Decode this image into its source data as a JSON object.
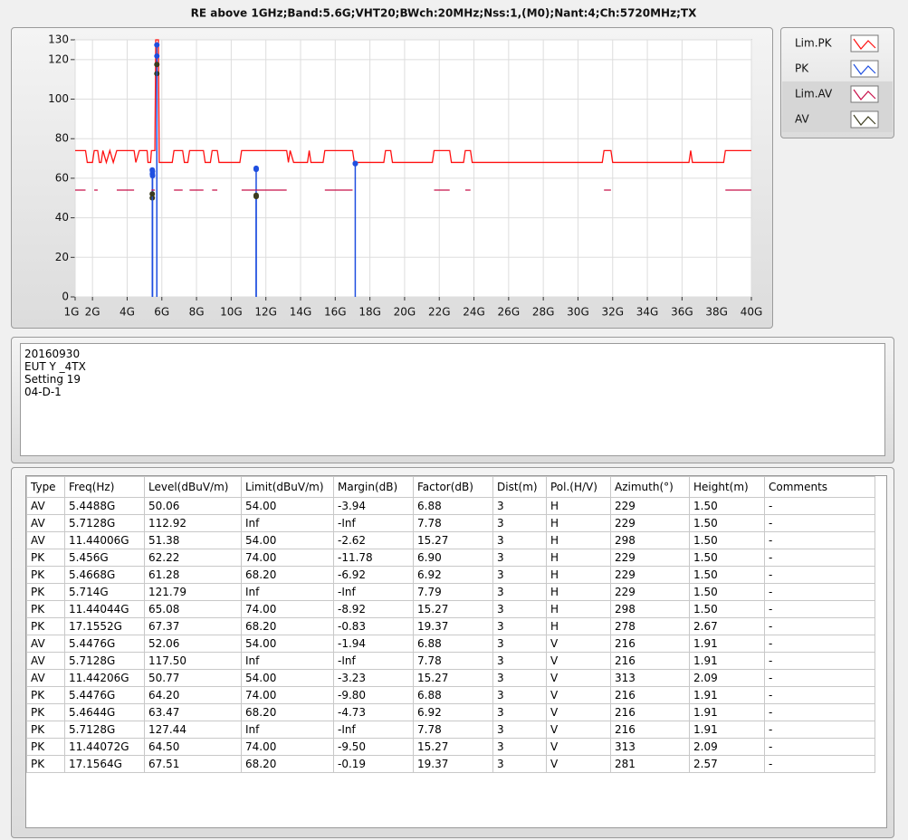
{
  "chart_data": {
    "type": "line",
    "title": "RE above 1GHz;Band:5.6G;VHT20;BWch:20MHz;Nss:1,(M0);Nant:4;Ch:5720MHz;TX",
    "xlim": [
      1,
      40
    ],
    "xticks": [
      {
        "value": 1,
        "label": "1G"
      },
      {
        "value": 2,
        "label": "2G"
      },
      {
        "value": 4,
        "label": "4G"
      },
      {
        "value": 6,
        "label": "6G"
      },
      {
        "value": 8,
        "label": "8G"
      },
      {
        "value": 10,
        "label": "10G"
      },
      {
        "value": 12,
        "label": "12G"
      },
      {
        "value": 14,
        "label": "14G"
      },
      {
        "value": 16,
        "label": "16G"
      },
      {
        "value": 18,
        "label": "18G"
      },
      {
        "value": 20,
        "label": "20G"
      },
      {
        "value": 22,
        "label": "22G"
      },
      {
        "value": 24,
        "label": "24G"
      },
      {
        "value": 26,
        "label": "26G"
      },
      {
        "value": 28,
        "label": "28G"
      },
      {
        "value": 30,
        "label": "30G"
      },
      {
        "value": 32,
        "label": "32G"
      },
      {
        "value": 34,
        "label": "34G"
      },
      {
        "value": 36,
        "label": "36G"
      },
      {
        "value": 38,
        "label": "38G"
      },
      {
        "value": 40,
        "label": "40G"
      }
    ],
    "ylim": [
      0,
      130
    ],
    "yticks": [
      0,
      20,
      40,
      60,
      80,
      100,
      120,
      130
    ],
    "grid": true,
    "legend": "right",
    "series": [
      {
        "name": "Lim.PK",
        "color": "#ff1010",
        "type": "line",
        "x": [
          1,
          1.6,
          1.7,
          2.0,
          2.1,
          2.3,
          2.4,
          2.5,
          2.6,
          2.8,
          3.0,
          3.2,
          3.4,
          4.4,
          4.5,
          4.7,
          5.15,
          5.2,
          5.35,
          5.4,
          5.6,
          5.65,
          5.8,
          5.85,
          6.6,
          6.7,
          7.2,
          7.3,
          7.5,
          7.6,
          8.4,
          8.5,
          8.8,
          8.9,
          9.2,
          9.3,
          10.5,
          10.6,
          13.2,
          13.3,
          13.4,
          13.6,
          14.4,
          14.5,
          14.6,
          15.3,
          15.4,
          17.0,
          17.1,
          18.8,
          18.9,
          19.2,
          19.3,
          21.6,
          21.7,
          22.6,
          22.7,
          23.4,
          23.5,
          23.8,
          23.9,
          31.4,
          31.5,
          31.9,
          32.0,
          36.4,
          36.5,
          36.6,
          38.4,
          38.5,
          40
        ],
        "values": [
          74,
          74,
          68,
          68,
          74,
          74,
          68,
          68,
          74,
          68,
          74,
          68,
          74,
          74,
          68,
          74,
          74,
          68,
          68,
          74,
          74,
          130,
          130,
          68,
          68,
          74,
          74,
          68,
          68,
          74,
          74,
          68,
          68,
          74,
          74,
          68,
          68,
          74,
          74,
          68,
          74,
          68,
          68,
          74,
          68,
          68,
          74,
          74,
          68,
          68,
          74,
          74,
          68,
          68,
          74,
          74,
          68,
          68,
          74,
          74,
          68,
          68,
          74,
          74,
          68,
          68,
          74,
          68,
          68,
          74,
          74
        ]
      },
      {
        "name": "PK",
        "color": "#1f4fe0",
        "type": "stem",
        "x": [
          5.456,
          5.4668,
          5.714,
          11.44044,
          17.1552,
          5.4476,
          5.4644,
          5.7128,
          11.44072,
          17.1564
        ],
        "values": [
          62.22,
          61.28,
          121.79,
          65.08,
          67.37,
          64.2,
          63.47,
          127.44,
          64.5,
          67.51
        ]
      },
      {
        "name": "Lim.AV",
        "color": "#c8104a",
        "type": "line",
        "x": [
          1,
          1.6,
          1.65,
          2.1,
          2.3,
          2.35,
          3.4,
          4.4,
          4.45,
          5.4,
          5.6,
          5.65,
          6.7,
          7.2,
          7.25,
          7.6,
          8.4,
          8.45,
          8.9,
          9.2,
          9.25,
          10.6,
          13.2,
          13.25,
          15.4,
          17.0,
          17.05,
          21.7,
          22.6,
          22.65,
          23.5,
          23.8,
          23.85,
          31.5,
          31.9,
          31.95,
          38.5,
          40
        ],
        "values": [
          54,
          54,
          null,
          54,
          54,
          null,
          54,
          54,
          null,
          54,
          54,
          null,
          54,
          54,
          null,
          54,
          54,
          null,
          54,
          54,
          null,
          54,
          54,
          null,
          54,
          54,
          null,
          54,
          54,
          null,
          54,
          54,
          null,
          54,
          54,
          null,
          54,
          54
        ]
      },
      {
        "name": "AV",
        "color": "#3c3c1e",
        "type": "stem",
        "x": [
          5.4488,
          5.7128,
          11.44006,
          5.4476,
          5.7128,
          11.44206
        ],
        "values": [
          50.06,
          112.92,
          51.38,
          52.06,
          117.5,
          50.77
        ]
      }
    ]
  },
  "notes": [
    "20160930",
    "EUT Y _4TX",
    "Setting 19",
    "04-D-1"
  ],
  "table": {
    "headers": [
      "Type",
      "Freq(Hz)",
      "Level(dBuV/m)",
      "Limit(dBuV/m)",
      "Margin(dB)",
      "Factor(dB)",
      "Dist(m)",
      "Pol.(H/V)",
      "Azimuth(°)",
      "Height(m)",
      "Comments"
    ],
    "rows": [
      [
        "AV",
        "5.4488G",
        "50.06",
        "54.00",
        "-3.94",
        "6.88",
        "3",
        "H",
        "229",
        "1.50",
        "-"
      ],
      [
        "AV",
        "5.7128G",
        "112.92",
        "Inf",
        "-Inf",
        "7.78",
        "3",
        "H",
        "229",
        "1.50",
        "-"
      ],
      [
        "AV",
        "11.44006G",
        "51.38",
        "54.00",
        "-2.62",
        "15.27",
        "3",
        "H",
        "298",
        "1.50",
        "-"
      ],
      [
        "PK",
        "5.456G",
        "62.22",
        "74.00",
        "-11.78",
        "6.90",
        "3",
        "H",
        "229",
        "1.50",
        "-"
      ],
      [
        "PK",
        "5.4668G",
        "61.28",
        "68.20",
        "-6.92",
        "6.92",
        "3",
        "H",
        "229",
        "1.50",
        "-"
      ],
      [
        "PK",
        "5.714G",
        "121.79",
        "Inf",
        "-Inf",
        "7.79",
        "3",
        "H",
        "229",
        "1.50",
        "-"
      ],
      [
        "PK",
        "11.44044G",
        "65.08",
        "74.00",
        "-8.92",
        "15.27",
        "3",
        "H",
        "298",
        "1.50",
        "-"
      ],
      [
        "PK",
        "17.1552G",
        "67.37",
        "68.20",
        "-0.83",
        "19.37",
        "3",
        "H",
        "278",
        "2.67",
        "-"
      ],
      [
        "AV",
        "5.4476G",
        "52.06",
        "54.00",
        "-1.94",
        "6.88",
        "3",
        "V",
        "216",
        "1.91",
        "-"
      ],
      [
        "AV",
        "5.7128G",
        "117.50",
        "Inf",
        "-Inf",
        "7.78",
        "3",
        "V",
        "216",
        "1.91",
        "-"
      ],
      [
        "AV",
        "11.44206G",
        "50.77",
        "54.00",
        "-3.23",
        "15.27",
        "3",
        "V",
        "313",
        "2.09",
        "-"
      ],
      [
        "PK",
        "5.4476G",
        "64.20",
        "74.00",
        "-9.80",
        "6.88",
        "3",
        "V",
        "216",
        "1.91",
        "-"
      ],
      [
        "PK",
        "5.4644G",
        "63.47",
        "68.20",
        "-4.73",
        "6.92",
        "3",
        "V",
        "216",
        "1.91",
        "-"
      ],
      [
        "PK",
        "5.7128G",
        "127.44",
        "Inf",
        "-Inf",
        "7.78",
        "3",
        "V",
        "216",
        "1.91",
        "-"
      ],
      [
        "PK",
        "11.44072G",
        "64.50",
        "74.00",
        "-9.50",
        "15.27",
        "3",
        "V",
        "313",
        "2.09",
        "-"
      ],
      [
        "PK",
        "17.1564G",
        "67.51",
        "68.20",
        "-0.19",
        "19.37",
        "3",
        "V",
        "281",
        "2.57",
        "-"
      ]
    ]
  }
}
